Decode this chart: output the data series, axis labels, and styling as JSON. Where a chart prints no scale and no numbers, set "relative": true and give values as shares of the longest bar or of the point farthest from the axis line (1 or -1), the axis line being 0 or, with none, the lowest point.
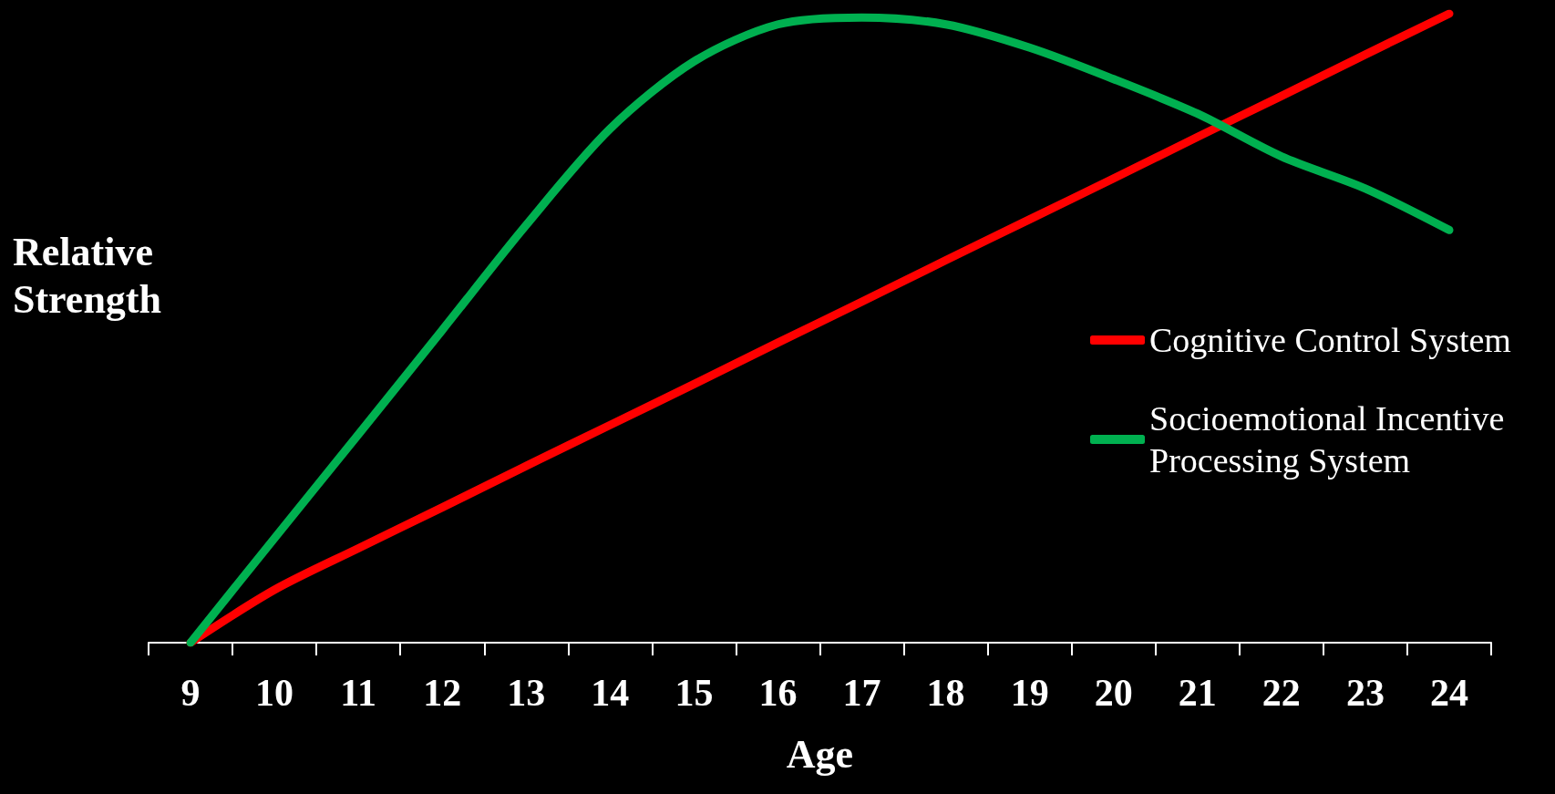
{
  "chart_data": {
    "type": "line",
    "relative": true,
    "xlabel": "Age",
    "ylabel": "Relative Strength",
    "categories": [
      "9",
      "10",
      "11",
      "12",
      "13",
      "14",
      "15",
      "16",
      "17",
      "18",
      "19",
      "20",
      "21",
      "22",
      "23",
      "24"
    ],
    "legend": "right",
    "grid": false,
    "marker": "none",
    "line_style": "solid",
    "series": [
      {
        "name": "Cognitive Control System",
        "color": "#ff0000",
        "values": [
          0,
          0.084,
          0.15,
          0.215,
          0.281,
          0.346,
          0.411,
          0.477,
          0.542,
          0.608,
          0.673,
          0.738,
          0.804,
          0.869,
          0.935,
          1
        ]
      },
      {
        "name": "Socioemotional Incentive Processing System",
        "color": "#00b050",
        "values": [
          0,
          0.166,
          0.331,
          0.497,
          0.664,
          0.817,
          0.924,
          0.983,
          0.994,
          0.983,
          0.946,
          0.896,
          0.841,
          0.773,
          0.722,
          0.656
        ]
      }
    ]
  }
}
